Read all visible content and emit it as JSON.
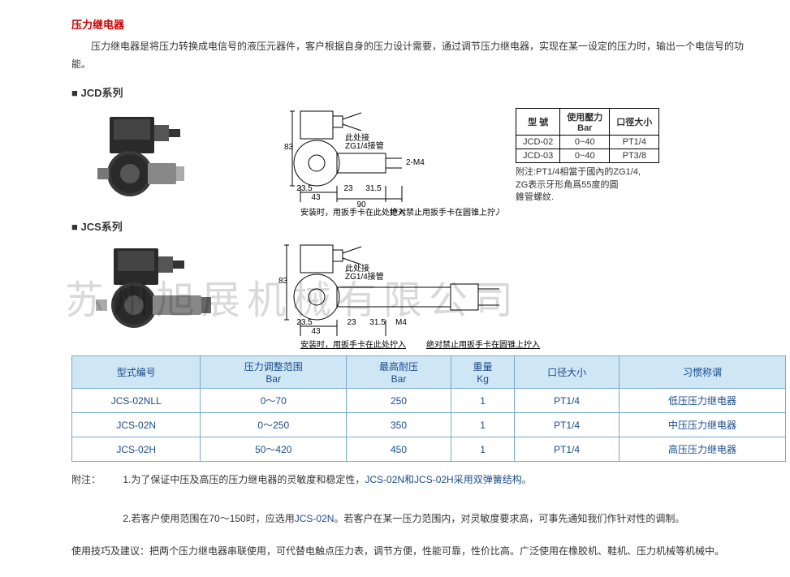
{
  "watermark": "苏州旭展机械有限公司",
  "title": "压力继电器",
  "intro": "压力继电器是将压力转换成电信号的液压元器件，客户根据自身的压力设计需要，通过调节压力继电器，实现在某一设定的压力时，输出一个电信号的功能。",
  "series": {
    "jcd": {
      "label": "■ JCD系列"
    },
    "jcs": {
      "label": "■ JCS系列"
    }
  },
  "jcd_diagram_labels": {
    "dim83": "83",
    "dim235": "23.5",
    "dim43": "43",
    "dim23": "23",
    "dim315": "31.5",
    "dim90": "90",
    "thread": "2-M4",
    "port_note": "此处接\nZG1/4接管",
    "install_note": "安装时，用扳手卡在此处拧入",
    "tight_note": "绝对禁止用扳手卡在圆锥上拧入"
  },
  "jcs_diagram_labels": {
    "dim83": "83",
    "dim235": "23.5",
    "dim43": "43",
    "dim23": "23",
    "dim315": "31.5",
    "thread": "M4",
    "port_note": "此处接\nZG1/4接管",
    "install_note": "安装时，用扳手卡在此处拧入",
    "tight_note": "绝对禁止用扳手卡在圆锥上拧入"
  },
  "mini_table": {
    "headers": [
      "型 號",
      "使用壓力\nBar",
      "口徑大小"
    ],
    "rows": [
      [
        "JCD-02",
        "0~40",
        "PT1/4"
      ],
      [
        "JCD-03",
        "0~40",
        "PT3/8"
      ]
    ],
    "note": "附注:PT1/4相當于國內的ZG1/4,\nZG表示牙形角爲55度的圓\n錐管螺紋."
  },
  "main_table": {
    "headers": [
      {
        "line1": "型式编号"
      },
      {
        "line1": "压力调整范围",
        "line2": "Bar"
      },
      {
        "line1": "最高耐压",
        "line2": "Bar"
      },
      {
        "line1": "重量",
        "line2": "Kg"
      },
      {
        "line1": "口径大小"
      },
      {
        "line1": "习惯称谓"
      }
    ],
    "rows": [
      {
        "model": "JCS-02NLL",
        "range": "0～70",
        "max": "250",
        "weight": "1",
        "port": "PT1/4",
        "name": "低压压力继电器"
      },
      {
        "model": "JCS-02N",
        "range": "0～250",
        "max": "350",
        "weight": "1",
        "port": "PT1/4",
        "name": "中压压力继电器"
      },
      {
        "model": "JCS-02H",
        "range": "50～420",
        "max": "450",
        "weight": "1",
        "port": "PT1/4",
        "name": "高压压力继电器"
      }
    ]
  },
  "notes": {
    "label": "附注：",
    "n1_pre": "1.为了保证中压及高压的压力继电器的灵敏度和稳定性，",
    "n1_link": "JCS-02N和JCS-02H采用双弹簧结构。",
    "n2_pre": "2.若客户使用范围在70～150时，应选用",
    "n2_link": "JCS-02N",
    "n2_post": "。若客户在某一压力范围内，对灵敏度要求高，可事先通知我们作针对性的调制。"
  },
  "usage": "使用技巧及建议：把两个压力继电器串联使用，可代替电触点压力表，调节方便，性能可靠，性价比高。广泛使用在橡胶机、鞋机、压力机械等机械中。",
  "colors": {
    "title": "#c00",
    "table_border": "#7aa8cc",
    "table_header_bg": "#cfe6f5",
    "table_text": "#1a4b8c"
  }
}
